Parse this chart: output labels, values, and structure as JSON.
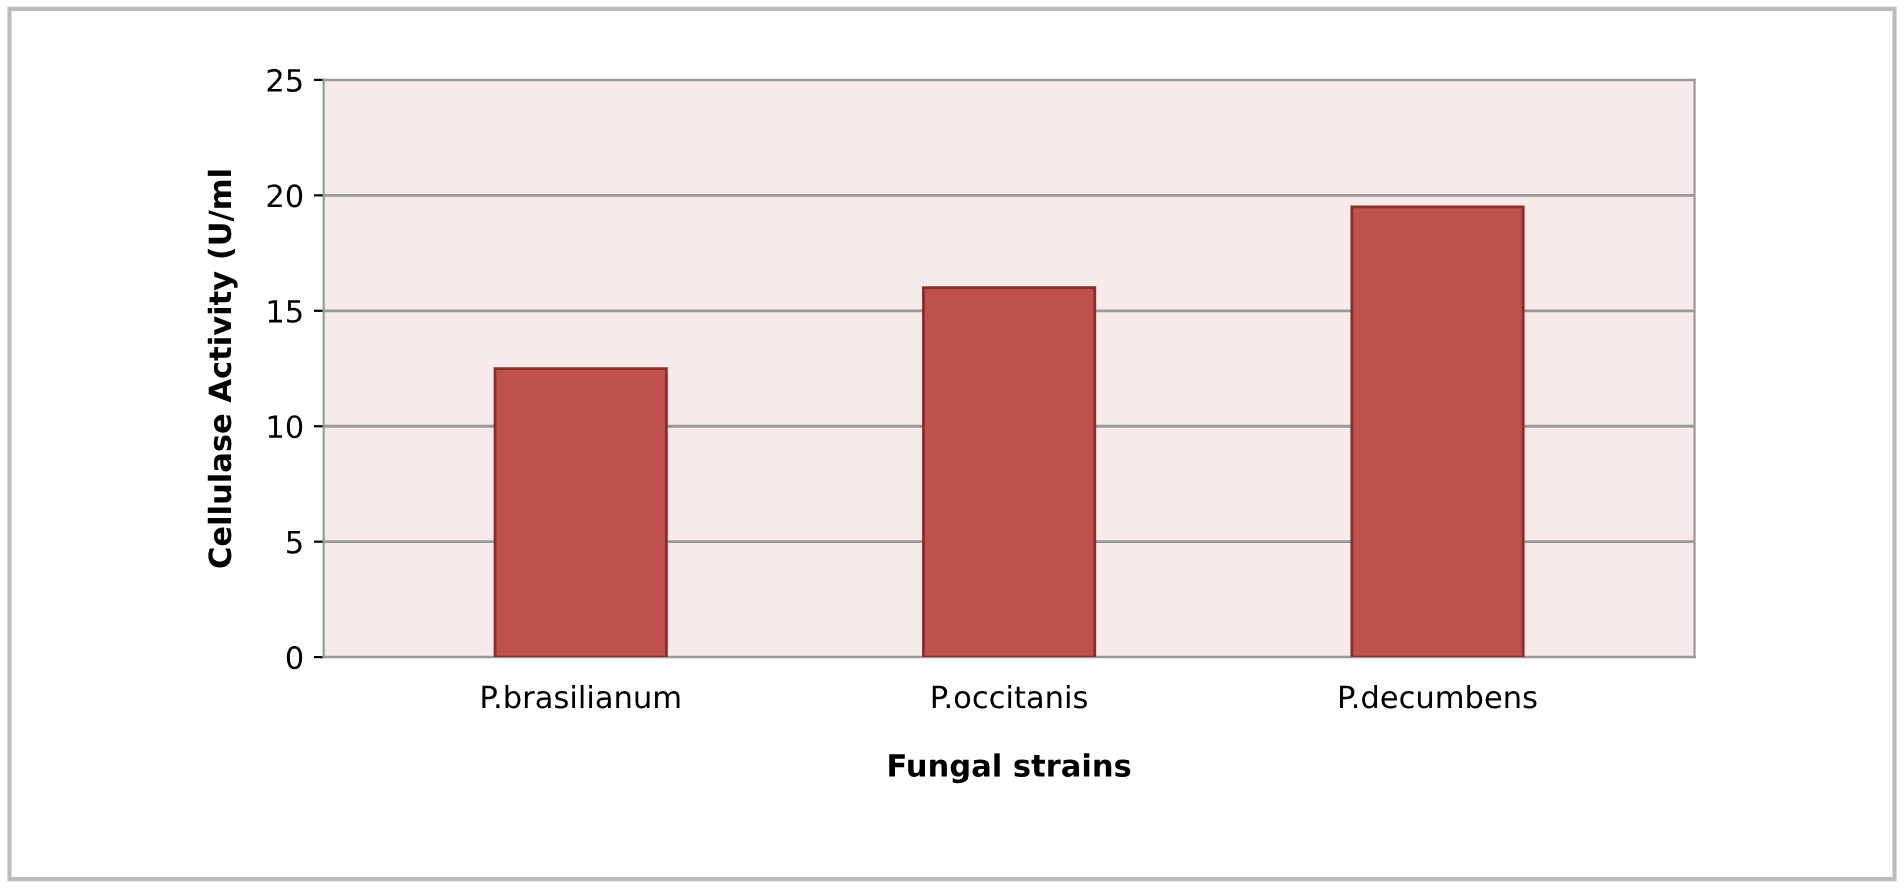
{
  "chart_data": {
    "type": "bar",
    "categories": [
      "P.brasilianum",
      "P.occitanis",
      "P.decumbens"
    ],
    "values": [
      12.5,
      16,
      19.5
    ],
    "color": "#c0504d",
    "xlabel": "Fungal strains",
    "ylabel": "Cellulase Activity (U/ml",
    "ylim": [
      0,
      25
    ],
    "yticks": [
      0,
      5,
      10,
      15,
      20,
      25
    ],
    "grid": "y",
    "legend": false
  }
}
